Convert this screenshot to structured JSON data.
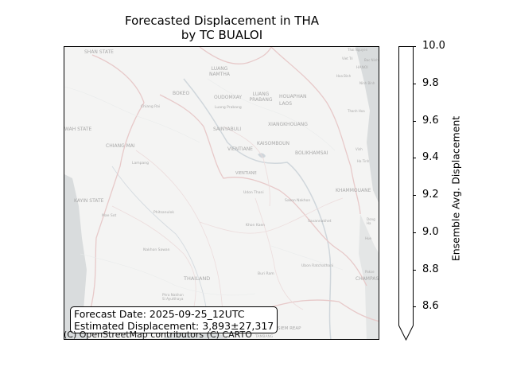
{
  "title": {
    "line1": "Forecasted Displacement in THA",
    "line2": "by TC BUALOI"
  },
  "info": {
    "forecast_date": "Forecast Date: 2025-09-25_12UTC",
    "estimated_displacement": "Estimated Displacement: 3,893±27,317"
  },
  "attribution": "(C) OpenStreetMap contributors (C) CARTO",
  "colorbar": {
    "label": "Ensemble Avg. Displacement",
    "ticks": [
      "10.0",
      "9.8",
      "9.6",
      "9.4",
      "9.2",
      "9.0",
      "8.8",
      "8.6"
    ],
    "fill_color": "#ffffff",
    "extend": "min"
  },
  "map_labels": {
    "shan_state": "SHAN STATE",
    "luang_namtha": "LUANG NAMTHA",
    "bokeo": "BOKEO",
    "oudomxay": "OUDOMXAY",
    "luang_prabang": "LUANG PRABANG",
    "houaphan": "HOUAPHAN",
    "laos": "LAOS",
    "chiang_rai": "Chiang Rai",
    "luang_prabang_city": "Luang Prabang",
    "sainyabuli": "SAINYABULI",
    "xiangkhouang": "XIANGKHOUANG",
    "wah_state": "WAH STATE",
    "chiang_mai": "CHIANG MAI",
    "vientiane_prov": "VIENTIANE",
    "kaisombun": "KAISOMBOUN",
    "bolikhamsai": "BOLIKHAMSAI",
    "lampang": "Lampang",
    "vientiane": "VIENTIANE",
    "kayin_state": "KAYIN STATE",
    "udon_thani": "Udon Thani",
    "sakon_nakhon": "Sakon Nakhon",
    "khammouane": "KHAMMOUANE",
    "mae_sot": "Mae Sot",
    "phitsanulok": "Phitsanulok",
    "savannakhet": "Savannakhet",
    "khon_kaen": "Khon Kaen",
    "nakhon_sawan": "Nakhon Sawan",
    "thailand": "THAILAND",
    "buri_ram": "Buri Ram",
    "ubon_ratchathani": "Ubon Ratchathani",
    "champasak": "CHAMPAS",
    "ayutthaya": "Phra Nakhon Si Ayutthaya",
    "siem_reap": "SIEM REAP",
    "tambang": "TAMBANG",
    "thai_nguyen": "Thai Nguyen",
    "viet_tri": "Viet Tri",
    "bac_ninh": "Bac Ninh",
    "hanoi": "HANOI",
    "hoa_binh": "Hoa Binh",
    "ninh_binh": "Ninh Binh",
    "thanh_hoa": "Thanh Hoa",
    "vinh": "Vinh",
    "ha_tinh": "Ha Tinh",
    "hue": "Hue",
    "dong_ha": "Dong Ha",
    "pakse": "Pakse"
  }
}
